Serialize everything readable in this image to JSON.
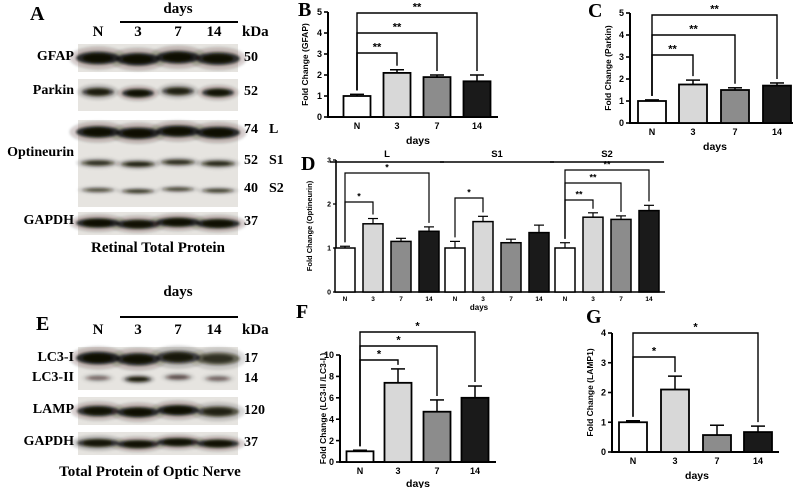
{
  "palette": {
    "bar_fills": [
      "#ffffff",
      "#d8d8d8",
      "#8c8c8c",
      "#1a1a1a"
    ],
    "axis_color": "#000000",
    "background": "#ffffff"
  },
  "panel_a": {
    "letter": "A",
    "days_label": "days",
    "lane_labels": [
      "N",
      "3",
      "7",
      "14"
    ],
    "kda_header": "kDa",
    "caption": "Retinal Total Protein",
    "rows": [
      {
        "labels": [
          "GFAP"
        ],
        "bands": [
          {
            "kda": "50",
            "tag": "",
            "intensities": [
              0.95,
              0.97,
              0.96,
              0.92
            ]
          }
        ]
      },
      {
        "labels": [
          "Parkin"
        ],
        "bands": [
          {
            "kda": "52",
            "tag": "",
            "intensities": [
              0.78,
              0.92,
              0.74,
              0.88
            ]
          }
        ]
      },
      {
        "labels": [
          "Optineurin"
        ],
        "bands": [
          {
            "kda": "74",
            "tag": "L",
            "intensities": [
              0.95,
              0.96,
              0.95,
              0.97
            ]
          },
          {
            "kda": "52",
            "tag": "S1",
            "intensities": [
              0.6,
              0.7,
              0.62,
              0.66
            ]
          },
          {
            "kda": "40",
            "tag": "S2",
            "intensities": [
              0.45,
              0.55,
              0.48,
              0.52
            ]
          }
        ]
      },
      {
        "labels": [
          "GAPDH"
        ],
        "bands": [
          {
            "kda": "37",
            "tag": "",
            "intensities": [
              0.95,
              0.9,
              0.93,
              0.94
            ]
          }
        ]
      }
    ]
  },
  "panel_e": {
    "letter": "E",
    "days_label": "days",
    "lane_labels": [
      "N",
      "3",
      "7",
      "14"
    ],
    "kda_header": "kDa",
    "caption": "Total Protein of Optic Nerve",
    "rows": [
      {
        "labels": [
          "LC3-I",
          "LC3-II"
        ],
        "bands": [
          {
            "kda": "17",
            "tag": "",
            "intensities": [
              0.97,
              0.9,
              0.8,
              0.62
            ]
          },
          {
            "kda": "14",
            "tag": "",
            "intensities": [
              0.3,
              0.78,
              0.4,
              0.32
            ]
          }
        ]
      },
      {
        "labels": [
          "LAMP"
        ],
        "bands": [
          {
            "kda": "120",
            "tag": "",
            "intensities": [
              0.9,
              0.93,
              0.95,
              0.72
            ]
          }
        ]
      },
      {
        "labels": [
          "GAPDH"
        ],
        "bands": [
          {
            "kda": "37",
            "tag": "",
            "intensities": [
              0.85,
              0.9,
              0.92,
              0.9
            ]
          }
        ]
      }
    ]
  },
  "chart_data": [
    {
      "id": "B",
      "letter": "B",
      "type": "bar",
      "ylabel": "Fold Change (GFAP)",
      "xlabel": "days",
      "categories": [
        "N",
        "3",
        "7",
        "14"
      ],
      "values": [
        1.0,
        2.1,
        1.9,
        1.7
      ],
      "errors": [
        0.08,
        0.15,
        0.1,
        0.3
      ],
      "ylim": [
        0,
        5
      ],
      "yticks": [
        0,
        1,
        2,
        3,
        4,
        5
      ],
      "significance": [
        {
          "from": 0,
          "to": 1,
          "label": "**"
        },
        {
          "from": 0,
          "to": 2,
          "label": "**"
        },
        {
          "from": 0,
          "to": 3,
          "label": "**"
        }
      ]
    },
    {
      "id": "C",
      "letter": "C",
      "type": "bar",
      "ylabel": "Fold Change (Parkin)",
      "xlabel": "days",
      "categories": [
        "N",
        "3",
        "7",
        "14"
      ],
      "values": [
        1.0,
        1.75,
        1.5,
        1.7
      ],
      "errors": [
        0.05,
        0.2,
        0.1,
        0.12
      ],
      "ylim": [
        0,
        5
      ],
      "yticks": [
        0,
        1,
        2,
        3,
        4,
        5
      ],
      "significance": [
        {
          "from": 0,
          "to": 1,
          "label": "**"
        },
        {
          "from": 0,
          "to": 2,
          "label": "**"
        },
        {
          "from": 0,
          "to": 3,
          "label": "**"
        }
      ]
    },
    {
      "id": "D",
      "letter": "D",
      "type": "grouped-bar",
      "ylabel": "Fold Change (Optineurin)",
      "xlabel": "days",
      "categories": [
        "N",
        "3",
        "7",
        "14"
      ],
      "ylim": [
        0,
        3
      ],
      "yticks": [
        0,
        1,
        2,
        3
      ],
      "groups": [
        {
          "name": "L",
          "values": [
            1.0,
            1.55,
            1.15,
            1.38
          ],
          "errors": [
            0.04,
            0.12,
            0.07,
            0.1
          ],
          "significance": [
            {
              "from": 0,
              "to": 1,
              "label": "*"
            },
            {
              "from": 0,
              "to": 3,
              "label": "*"
            }
          ]
        },
        {
          "name": "S1",
          "values": [
            1.0,
            1.6,
            1.12,
            1.35
          ],
          "errors": [
            0.15,
            0.12,
            0.08,
            0.17
          ],
          "significance": [
            {
              "from": 0,
              "to": 1,
              "label": "*"
            }
          ]
        },
        {
          "name": "S2",
          "values": [
            1.0,
            1.7,
            1.65,
            1.85
          ],
          "errors": [
            0.12,
            0.1,
            0.08,
            0.12
          ],
          "significance": [
            {
              "from": 0,
              "to": 1,
              "label": "**"
            },
            {
              "from": 0,
              "to": 2,
              "label": "**"
            },
            {
              "from": 0,
              "to": 3,
              "label": "**"
            }
          ]
        }
      ]
    },
    {
      "id": "F",
      "letter": "F",
      "type": "bar",
      "ylabel": "Fold Change (LC3-II /LC3-I )",
      "xlabel": "days",
      "categories": [
        "N",
        "3",
        "7",
        "14"
      ],
      "values": [
        1.0,
        7.4,
        4.7,
        6.0
      ],
      "errors": [
        0.1,
        1.3,
        1.1,
        1.1
      ],
      "ylim": [
        0,
        10
      ],
      "yticks": [
        0,
        2,
        4,
        6,
        8,
        10
      ],
      "significance": [
        {
          "from": 0,
          "to": 1,
          "label": "*"
        },
        {
          "from": 0,
          "to": 2,
          "label": "*"
        },
        {
          "from": 0,
          "to": 3,
          "label": "*"
        }
      ]
    },
    {
      "id": "G",
      "letter": "G",
      "type": "bar",
      "ylabel": "Fold Change (LAMP1)",
      "xlabel": "days",
      "categories": [
        "N",
        "3",
        "7",
        "14"
      ],
      "values": [
        1.0,
        2.1,
        0.57,
        0.67
      ],
      "errors": [
        0.05,
        0.45,
        0.33,
        0.2
      ],
      "ylim": [
        0,
        4
      ],
      "yticks": [
        0,
        1,
        2,
        3,
        4
      ],
      "significance": [
        {
          "from": 0,
          "to": 1,
          "label": "*"
        },
        {
          "from": 0,
          "to": 3,
          "label": "*"
        }
      ]
    }
  ]
}
